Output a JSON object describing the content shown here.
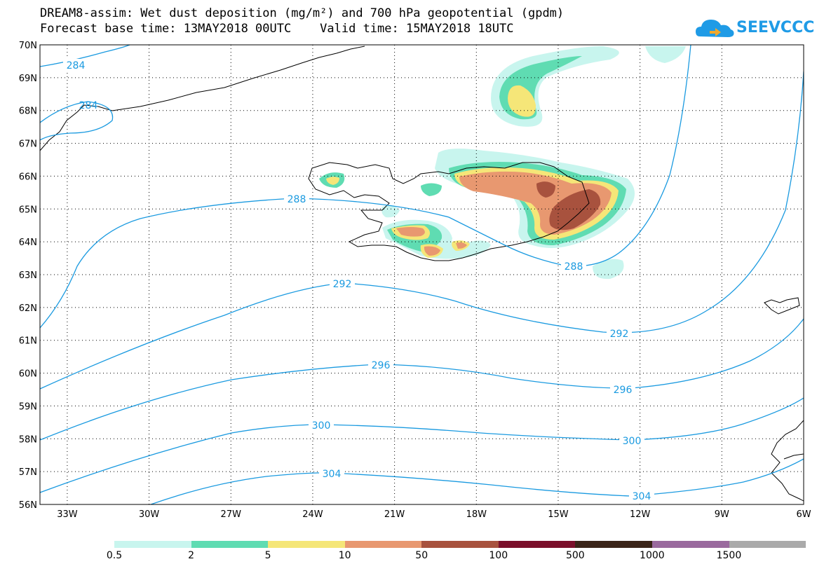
{
  "title": {
    "line1": "DREAM8-assim: Wet dust deposition (mg/m²) and 700 hPa geopotential (gpdm)",
    "line2": "Forecast base time: 13MAY2018 00UTC    Valid time: 15MAY2018 18UTC"
  },
  "logo": {
    "text": "SEEVCCC",
    "icon": "cloud-icon"
  },
  "map": {
    "lon_ticks": [
      "33W",
      "30W",
      "27W",
      "24W",
      "21W",
      "18W",
      "15W",
      "12W",
      "9W",
      "6W"
    ],
    "lat_ticks": [
      "70N",
      "69N",
      "68N",
      "67N",
      "66N",
      "65N",
      "64N",
      "63N",
      "62N",
      "61N",
      "60N",
      "59N",
      "58N",
      "57N",
      "56N"
    ],
    "lon_range": [
      -34,
      -6
    ],
    "lat_range": [
      56,
      70
    ],
    "contour_color": "#1a9ae0",
    "contour_labels": [
      "284",
      "284",
      "288",
      "288",
      "292",
      "292",
      "296",
      "296",
      "300",
      "300",
      "304",
      "304"
    ]
  },
  "colorbar": {
    "colors": [
      "#c8f5ee",
      "#5fdcb2",
      "#f5e678",
      "#e89870",
      "#a8523e",
      "#7a0f2a",
      "#3a2418",
      "#9a6a9e",
      "#aaaaaa"
    ],
    "labels": [
      "0.5",
      "2",
      "5",
      "10",
      "50",
      "100",
      "500",
      "1000",
      "1500"
    ]
  }
}
